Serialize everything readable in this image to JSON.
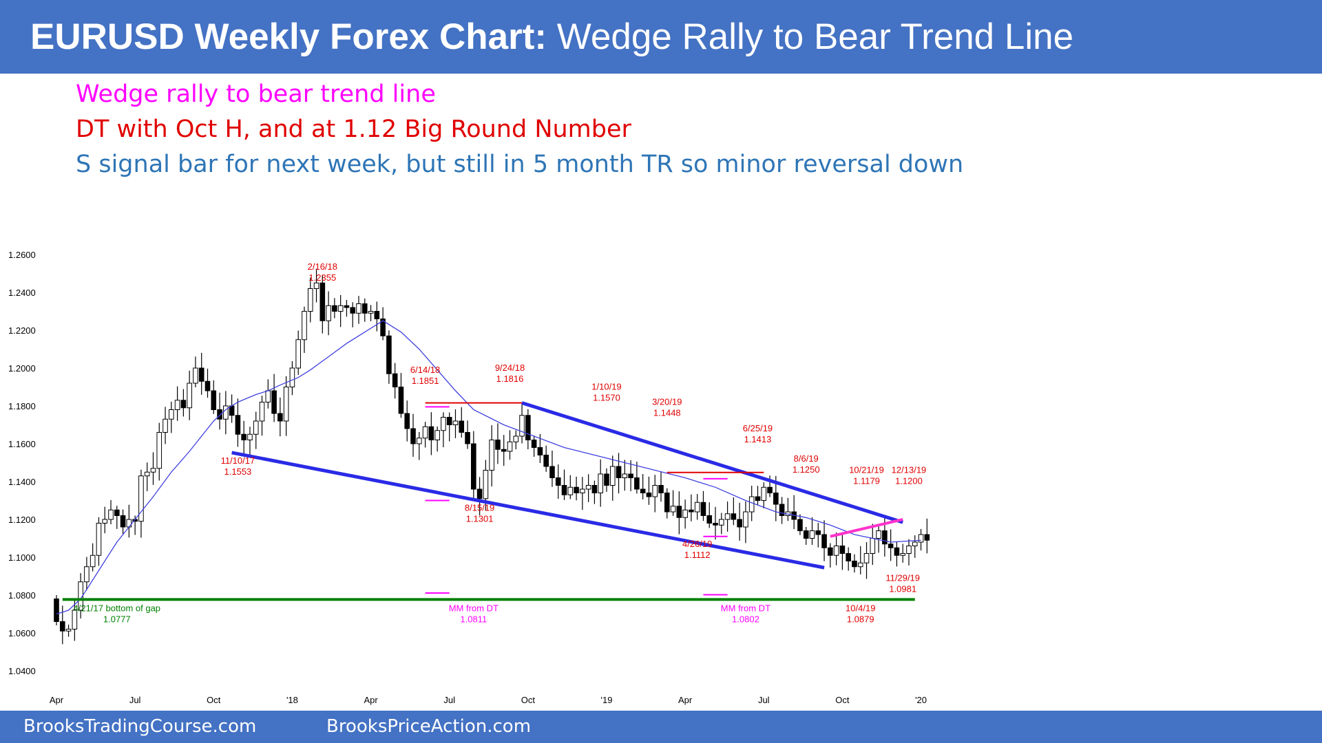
{
  "header": {
    "title_bold": "EURUSD Weekly Forex Chart:",
    "title_rest": "Wedge Rally to Bear Trend Line"
  },
  "notes": [
    {
      "text": "Wedge rally to bear trend line",
      "color": "#ff00ff"
    },
    {
      "text": "DT with Oct H, and at 1.12 Big Round Number",
      "color": "#e00000"
    },
    {
      "text": "S signal bar for next week, but still in 5 month TR so minor reversal down",
      "color": "#2e75b6"
    }
  ],
  "footer": {
    "left": "BrooksTradingCourse.com",
    "right": "BrooksPriceAction.com"
  },
  "chart_data": {
    "type": "candlestick",
    "ylim": [
      1.03,
      1.265
    ],
    "y_ticks": [
      "1.0400",
      "1.0600",
      "1.0800",
      "1.1000",
      "1.1200",
      "1.1400",
      "1.1600",
      "1.1800",
      "1.2000",
      "1.2200",
      "1.2400",
      "1.2600"
    ],
    "y_tick_values": [
      1.04,
      1.06,
      1.08,
      1.1,
      1.12,
      1.14,
      1.16,
      1.18,
      1.2,
      1.22,
      1.24,
      1.26
    ],
    "x_ticks": [
      {
        "label": "Apr",
        "week": 0
      },
      {
        "label": "Jul",
        "week": 13
      },
      {
        "label": "Oct",
        "week": 26
      },
      {
        "label": "'18",
        "week": 39
      },
      {
        "label": "Apr",
        "week": 52
      },
      {
        "label": "Jul",
        "week": 65
      },
      {
        "label": "Oct",
        "week": 78
      },
      {
        "label": "'19",
        "week": 91
      },
      {
        "label": "Apr",
        "week": 104
      },
      {
        "label": "Jul",
        "week": 117
      },
      {
        "label": "Oct",
        "week": 130
      },
      {
        "label": "'20",
        "week": 143
      }
    ],
    "x_range_weeks": [
      -1,
      143
    ],
    "closes": [
      1.066,
      1.061,
      1.062,
      1.072,
      1.087,
      1.095,
      1.101,
      1.118,
      1.12,
      1.125,
      1.122,
      1.116,
      1.12,
      1.119,
      1.143,
      1.145,
      1.147,
      1.166,
      1.173,
      1.178,
      1.183,
      1.179,
      1.192,
      1.2,
      1.193,
      1.188,
      1.178,
      1.173,
      1.18,
      1.175,
      1.165,
      1.162,
      1.165,
      1.172,
      1.182,
      1.188,
      1.176,
      1.172,
      1.19,
      1.2,
      1.215,
      1.23,
      1.242,
      1.245,
      1.225,
      1.233,
      1.23,
      1.233,
      1.232,
      1.229,
      1.234,
      1.229,
      1.23,
      1.226,
      1.217,
      1.197,
      1.19,
      1.176,
      1.168,
      1.16,
      1.163,
      1.169,
      1.162,
      1.167,
      1.174,
      1.17,
      1.172,
      1.166,
      1.16,
      1.136,
      1.131,
      1.146,
      1.162,
      1.157,
      1.156,
      1.161,
      1.164,
      1.175,
      1.162,
      1.158,
      1.154,
      1.148,
      1.142,
      1.138,
      1.133,
      1.137,
      1.134,
      1.136,
      1.138,
      1.134,
      1.144,
      1.138,
      1.148,
      1.142,
      1.144,
      1.142,
      1.136,
      1.134,
      1.132,
      1.138,
      1.134,
      1.124,
      1.127,
      1.121,
      1.125,
      1.124,
      1.129,
      1.122,
      1.118,
      1.117,
      1.12,
      1.123,
      1.12,
      1.116,
      1.124,
      1.132,
      1.13,
      1.137,
      1.134,
      1.128,
      1.122,
      1.124,
      1.12,
      1.114,
      1.11,
      1.114,
      1.112,
      1.105,
      1.101,
      1.106,
      1.102,
      1.098,
      1.095,
      1.097,
      1.102,
      1.11,
      1.114,
      1.107,
      1.105,
      1.101,
      1.102,
      1.106,
      1.108,
      1.112,
      1.109
    ],
    "ema": [
      1.07,
      1.072,
      1.078,
      1.088,
      1.098,
      1.108,
      1.12,
      1.132,
      1.145,
      1.156,
      1.164,
      1.172,
      1.178,
      1.182,
      1.186,
      1.188,
      1.191,
      1.195,
      1.199,
      1.206,
      1.213,
      1.219,
      1.223,
      1.225,
      1.219,
      1.21,
      1.199,
      1.188,
      1.178,
      1.17,
      1.164,
      1.158,
      1.154,
      1.15,
      1.146,
      1.142,
      1.137,
      1.13,
      1.124,
      1.121,
      1.117,
      1.112,
      1.108,
      1.109
    ],
    "ema_weeks": [
      0,
      2,
      4,
      6,
      8,
      10,
      13,
      16,
      19,
      22,
      24,
      26,
      28,
      30,
      33,
      35,
      37,
      40,
      42,
      45,
      48,
      51,
      53,
      54,
      57,
      60,
      63,
      66,
      69,
      74,
      79,
      84,
      89,
      94,
      99,
      104,
      109,
      114,
      119,
      124,
      128,
      132,
      138,
      143
    ],
    "annotations": [
      {
        "text": [
          "2/16/18",
          "1.2355"
        ],
        "week": 44,
        "y": 1.252,
        "color": "#e00000"
      },
      {
        "text": [
          "6/14/18",
          "1.1851"
        ],
        "week": 61,
        "y": 1.1975,
        "color": "#e00000"
      },
      {
        "text": [
          "9/24/18",
          "1.1816"
        ],
        "week": 75,
        "y": 1.1985,
        "color": "#e00000"
      },
      {
        "text": [
          "11/10/17",
          "1.1553"
        ],
        "week": 30,
        "y": 1.1495,
        "color": "#e00000"
      },
      {
        "text": [
          "8/15/19",
          "1.1301"
        ],
        "week": 70,
        "y": 1.1245,
        "color": "#e00000"
      },
      {
        "text": [
          "1/10/19",
          "1.1570"
        ],
        "week": 91,
        "y": 1.1885,
        "color": "#e00000"
      },
      {
        "text": [
          "3/20/19",
          "1.1448"
        ],
        "week": 101,
        "y": 1.1805,
        "color": "#e00000"
      },
      {
        "text": [
          "4/26/19",
          "1.1112"
        ],
        "week": 106,
        "y": 1.1055,
        "color": "#e00000"
      },
      {
        "text": [
          "6/25/19",
          "1.1413"
        ],
        "week": 116,
        "y": 1.1665,
        "color": "#e00000"
      },
      {
        "text": [
          "8/6/19",
          "1.1250"
        ],
        "week": 124,
        "y": 1.1505,
        "color": "#e00000"
      },
      {
        "text": [
          "10/21/19",
          "1.1179"
        ],
        "week": 134,
        "y": 1.1445,
        "color": "#e00000"
      },
      {
        "text": [
          "12/13/19",
          "1.1200"
        ],
        "week": 141,
        "y": 1.1445,
        "color": "#e00000"
      },
      {
        "text": [
          "11/29/19",
          "1.0981"
        ],
        "week": 140,
        "y": 1.0875,
        "color": "#e00000"
      },
      {
        "text": [
          "10/4/19",
          "1.0879"
        ],
        "week": 133,
        "y": 1.0715,
        "color": "#e00000"
      },
      {
        "text": [
          "4/21/17 bottom of gap",
          "1.0777"
        ],
        "week": 10,
        "y": 1.0715,
        "color": "#008000"
      },
      {
        "text": [
          "MM from DT",
          "1.0811"
        ],
        "week": 69,
        "y": 1.0715,
        "color": "#ff00ff"
      },
      {
        "text": [
          "MM from DT",
          "1.0802"
        ],
        "week": 114,
        "y": 1.0715,
        "color": "#ff00ff"
      }
    ],
    "lines": [
      {
        "name": "upper-bear-trend-line",
        "color": "#2a2ae6",
        "width": 5,
        "points": [
          [
            77,
            1.1816
          ],
          [
            140,
            1.1185
          ]
        ]
      },
      {
        "name": "lower-wedge-line",
        "color": "#2a2ae6",
        "width": 5,
        "points": [
          [
            29,
            1.1553
          ],
          [
            127,
            1.0945
          ]
        ]
      },
      {
        "name": "gap-support-line",
        "color": "#008000",
        "width": 4,
        "points": [
          [
            1,
            1.0777
          ],
          [
            142,
            1.0777
          ]
        ]
      },
      {
        "name": "oct-high-resistance",
        "color": "#e00000",
        "width": 2,
        "points": [
          [
            61,
            1.1816
          ],
          [
            77,
            1.1816
          ]
        ]
      },
      {
        "name": "mar-high-resistance",
        "color": "#e00000",
        "width": 2,
        "points": [
          [
            101,
            1.1448
          ],
          [
            117,
            1.1448
          ]
        ]
      },
      {
        "name": "wedge-rally-line",
        "color": "#ff33cc",
        "width": 4,
        "points": [
          [
            128,
            1.111
          ],
          [
            140,
            1.12
          ]
        ]
      },
      {
        "name": "dt-top-marker-1",
        "color": "#ff00ff",
        "width": 2,
        "points": [
          [
            61,
            1.1795
          ],
          [
            65,
            1.1795
          ]
        ]
      },
      {
        "name": "dt-bottom-marker-1",
        "color": "#ff00ff",
        "width": 2,
        "points": [
          [
            61,
            1.13
          ],
          [
            65,
            1.13
          ]
        ]
      },
      {
        "name": "mm-marker-1",
        "color": "#ff00ff",
        "width": 2,
        "points": [
          [
            61,
            1.0811
          ],
          [
            65,
            1.0811
          ]
        ]
      },
      {
        "name": "dt-top-marker-2",
        "color": "#ff00ff",
        "width": 2,
        "points": [
          [
            107,
            1.1415
          ],
          [
            111,
            1.1415
          ]
        ]
      },
      {
        "name": "dt-bottom-marker-2",
        "color": "#ff00ff",
        "width": 2,
        "points": [
          [
            107,
            1.111
          ],
          [
            111,
            1.111
          ]
        ]
      },
      {
        "name": "mm-marker-2",
        "color": "#ff00ff",
        "width": 2,
        "points": [
          [
            107,
            1.0802
          ],
          [
            111,
            1.0802
          ]
        ]
      }
    ]
  }
}
